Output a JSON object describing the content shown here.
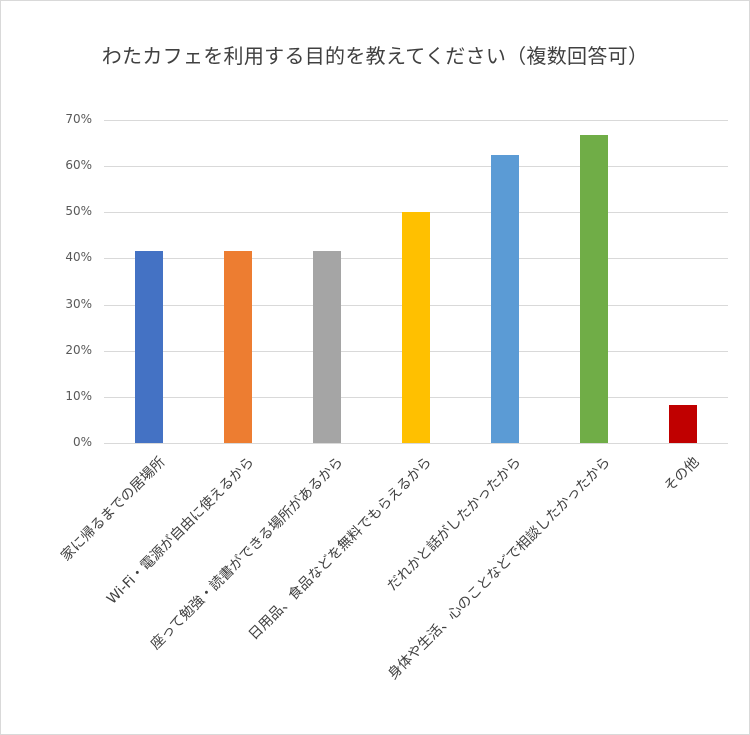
{
  "chart_data": {
    "type": "bar",
    "title": "わたカフェを利用する目的を教えてください（複数回答可）",
    "xlabel": "",
    "ylabel": "",
    "ylim": [
      0,
      70
    ],
    "y_ticks": [
      "0%",
      "10%",
      "20%",
      "30%",
      "40%",
      "50%",
      "60%",
      "70%"
    ],
    "grid": true,
    "legend": "none",
    "categories": [
      "家に帰るまでの居場所",
      "Wi-Fi・電源が自由に使えるから",
      "座って勉強・読書ができる場所があるから",
      "日用品、食品などを無料でもらえるから",
      "だれかと話がしたかったから",
      "身体や生活、心のことなどで相談したかったから",
      "その他"
    ],
    "values": [
      41.7,
      41.7,
      41.7,
      50.0,
      62.5,
      66.7,
      8.3
    ],
    "unit": "%",
    "colors": [
      "#4472c4",
      "#ed7d31",
      "#a5a5a5",
      "#ffc000",
      "#5b9bd5",
      "#70ad47",
      "#c00000"
    ]
  }
}
